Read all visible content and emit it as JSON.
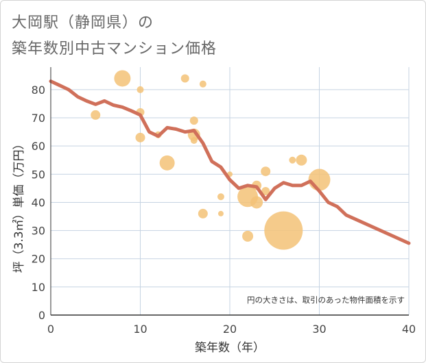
{
  "title_line1": "大岡駅（静岡県）の",
  "title_line2": "築年数別中古マンション価格",
  "chart_data": {
    "type": "scatter",
    "xlabel": "築年数（年）",
    "ylabel": "坪（3.3㎡）単価（万円）",
    "xlim": [
      0,
      40
    ],
    "ylim": [
      0,
      88
    ],
    "xticks": [
      0,
      10,
      20,
      30,
      40
    ],
    "yticks": [
      0,
      10,
      20,
      30,
      40,
      50,
      60,
      70,
      80
    ],
    "note": "円の大きさは、取引のあった物件面積を示す",
    "points": [
      {
        "x": 5,
        "y": 71,
        "size": 7
      },
      {
        "x": 8,
        "y": 84,
        "size": 12
      },
      {
        "x": 10,
        "y": 80,
        "size": 5
      },
      {
        "x": 10,
        "y": 72,
        "size": 6
      },
      {
        "x": 10,
        "y": 63,
        "size": 7
      },
      {
        "x": 12,
        "y": 64,
        "size": 5
      },
      {
        "x": 13,
        "y": 54,
        "size": 11
      },
      {
        "x": 15,
        "y": 84,
        "size": 6
      },
      {
        "x": 16,
        "y": 69,
        "size": 6
      },
      {
        "x": 16,
        "y": 64,
        "size": 9
      },
      {
        "x": 16,
        "y": 62,
        "size": 5
      },
      {
        "x": 17,
        "y": 82,
        "size": 5
      },
      {
        "x": 17,
        "y": 36,
        "size": 7
      },
      {
        "x": 19,
        "y": 42,
        "size": 5
      },
      {
        "x": 19,
        "y": 36,
        "size": 4
      },
      {
        "x": 20,
        "y": 50,
        "size": 4
      },
      {
        "x": 22,
        "y": 42,
        "size": 15
      },
      {
        "x": 22,
        "y": 28,
        "size": 8
      },
      {
        "x": 23,
        "y": 46,
        "size": 7
      },
      {
        "x": 23,
        "y": 40,
        "size": 9
      },
      {
        "x": 24,
        "y": 51,
        "size": 7
      },
      {
        "x": 24,
        "y": 44,
        "size": 6
      },
      {
        "x": 26,
        "y": 30,
        "size": 28
      },
      {
        "x": 27,
        "y": 55,
        "size": 5
      },
      {
        "x": 28,
        "y": 55,
        "size": 8
      },
      {
        "x": 30,
        "y": 48,
        "size": 16
      }
    ],
    "series": [
      {
        "name": "平均",
        "x": [
          0,
          1,
          2,
          3,
          4,
          5,
          6,
          7,
          8,
          9,
          10,
          11,
          12,
          13,
          14,
          15,
          16,
          17,
          18,
          19,
          20,
          21,
          22,
          23,
          24,
          25,
          26,
          27,
          28,
          29,
          30,
          31,
          32,
          33,
          40
        ],
        "values": [
          83,
          81.5,
          80,
          77.5,
          76,
          74.8,
          76,
          74.5,
          73.8,
          72.5,
          71,
          65,
          63.5,
          66.5,
          66,
          65,
          65.5,
          61,
          54.5,
          52.5,
          48,
          45,
          46,
          45.5,
          41,
          45,
          47,
          46,
          46,
          47.5,
          44,
          40,
          38.5,
          35.5,
          25.5
        ]
      }
    ]
  },
  "colors": {
    "bubble": "#f3c277",
    "line": "#d0705a",
    "grid": "#c5d3e2",
    "axis": "#333333"
  }
}
